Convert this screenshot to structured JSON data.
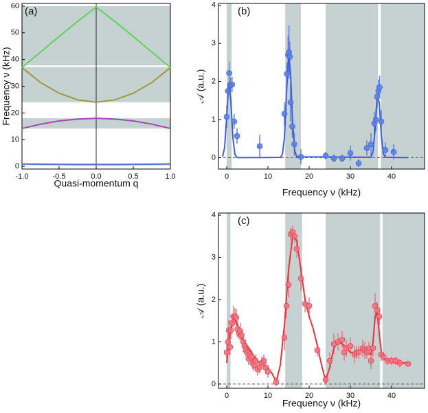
{
  "chart_data": [
    {
      "type": "line",
      "panel_label": "(a)",
      "x_label": "Quasi-momentum q",
      "y_label": "Frequency ν (kHz)",
      "x": [
        -1,
        -0.75,
        -0.5,
        -0.25,
        0,
        0.25,
        0.5,
        0.75,
        1
      ],
      "series": [
        {
          "color": "#5dd35a",
          "values": [
            37,
            42.8,
            48.6,
            54.3,
            59.6,
            54.3,
            48.6,
            42.8,
            37
          ]
        },
        {
          "color": "#9a9a3c",
          "values": [
            37,
            31.4,
            27.4,
            24.9,
            24,
            24.9,
            27.4,
            31.4,
            37
          ]
        },
        {
          "color": "#a547b3",
          "values": [
            14.2,
            15.8,
            17,
            17.7,
            18,
            17.7,
            17,
            15.8,
            14.2
          ]
        },
        {
          "color": "#5070e0",
          "values": [
            0.9,
            0.8,
            0.7,
            0.65,
            0.65,
            0.65,
            0.7,
            0.8,
            0.9
          ]
        }
      ],
      "shaded_y": [
        [
          0.4,
          1.2
        ],
        [
          14.2,
          18
        ],
        [
          24,
          37.2
        ],
        [
          37.8,
          60
        ]
      ],
      "vline": 0,
      "xlim": [
        -1,
        1
      ],
      "ylim": [
        -1,
        61
      ],
      "xticks": [
        {
          "value": -1,
          "label": "-1.0"
        },
        {
          "value": -0.5,
          "label": "-0.5"
        },
        {
          "value": 0,
          "label": "0.0"
        },
        {
          "value": 0.5,
          "label": "0.5"
        },
        {
          "value": 1,
          "label": "1.0"
        }
      ],
      "yticks": [
        0,
        10,
        20,
        30,
        40,
        50,
        60
      ]
    },
    {
      "type": "scatter",
      "panel_label": "(b)",
      "x_label": "Frequency ν (kHz)",
      "y_label": "𝒜 (a.u.)",
      "points": {
        "color": "#5b7fe6",
        "x": [
          0,
          0.3,
          0.6,
          0.9,
          1.3,
          1.8,
          2.5,
          8,
          14,
          14.6,
          14.9,
          15.1,
          15.3,
          15.5,
          15.9,
          16.4,
          18,
          24,
          26,
          28,
          30,
          32,
          34,
          35,
          35.8,
          36.2,
          36.5,
          36.8,
          37.1,
          37.5,
          38.5,
          40.5
        ],
        "y": [
          1.07,
          1.75,
          2.22,
          1.9,
          1.92,
          0.95,
          0.57,
          0.3,
          1.15,
          2.2,
          2.7,
          2.77,
          2.65,
          1.45,
          0.82,
          0.35,
          0.02,
          0.05,
          -0.02,
          -0.02,
          0.12,
          -0.15,
          0.25,
          0.35,
          0.9,
          1.0,
          1.6,
          1.75,
          1.85,
          0.95,
          0.2,
          0.15
        ],
        "err": [
          0.3,
          0.2,
          0.3,
          0.2,
          0.2,
          0.2,
          0.2,
          0.3,
          0.3,
          0.3,
          0.5,
          0.7,
          0.4,
          0.5,
          0.3,
          0.3,
          0.2,
          0.1,
          0.1,
          0.1,
          0.2,
          0.1,
          0.2,
          0.3,
          0.3,
          0.3,
          0.3,
          0.3,
          0.3,
          0.3,
          0.2,
          0.2
        ]
      },
      "fit": {
        "color": "#3a5fd9",
        "x": [
          -1,
          -0.5,
          0,
          0.5,
          1,
          1.5,
          2,
          2.5,
          3,
          13,
          13.5,
          14,
          14.5,
          15,
          15.5,
          16,
          16.5,
          17,
          35,
          35.5,
          36,
          36.5,
          37,
          37.5,
          38,
          38.5,
          44
        ],
        "y": [
          0.03,
          0.27,
          1.1,
          1.97,
          1.5,
          0.52,
          0.08,
          0.005,
          0,
          0.006,
          0.08,
          0.51,
          1.66,
          2.71,
          2.2,
          0.89,
          0.18,
          0.02,
          0.01,
          0.15,
          0.75,
          1.6,
          1.45,
          0.59,
          0.1,
          0.01,
          0
        ]
      },
      "shaded_x": [
        [
          0,
          1.2
        ],
        [
          14.2,
          18
        ],
        [
          24,
          36.7
        ],
        [
          37.4,
          48
        ]
      ],
      "hline": 0,
      "xlim": [
        -2,
        48
      ],
      "ylim": [
        -0.3,
        4.05
      ],
      "xticks": [
        0,
        10,
        20,
        30,
        40
      ],
      "yticks": [
        0,
        1,
        2,
        3,
        4
      ]
    },
    {
      "type": "scatter",
      "panel_label": "(c)",
      "x_label": "Frequency ν (kHz)",
      "y_label": "𝒜 (a.u.)",
      "points": {
        "color": "#f07383",
        "x": [
          0,
          0.3,
          0.5,
          0.8,
          1,
          1.3,
          1.6,
          2,
          2.3,
          2.6,
          3,
          3.3,
          3.6,
          4,
          4.3,
          4.6,
          5,
          5.3,
          5.6,
          6,
          6.3,
          6.6,
          7,
          7.5,
          8,
          8.5,
          9,
          9.5,
          10,
          12,
          14,
          14.5,
          15,
          15.5,
          16,
          16.5,
          17,
          18,
          19,
          20,
          22,
          24,
          25,
          26,
          27,
          28,
          28.5,
          29,
          30,
          31,
          31.5,
          32,
          33,
          33.5,
          34,
          34.5,
          35,
          35.5,
          36,
          36.5,
          37,
          37.5,
          38,
          39,
          40,
          41,
          42,
          44
        ],
        "y": [
          0.75,
          1.0,
          1.27,
          0.88,
          1.27,
          1.45,
          1.6,
          1.6,
          1.57,
          1.3,
          1.2,
          1.25,
          1.15,
          1.0,
          0.9,
          0.8,
          0.75,
          0.6,
          0.7,
          0.65,
          0.5,
          0.45,
          0.55,
          0.35,
          0.4,
          0.5,
          0.55,
          0.38,
          0.3,
          0.05,
          1.1,
          1.85,
          2.35,
          3.55,
          3.6,
          3.5,
          3.2,
          2.5,
          1.9,
          1.85,
          0.8,
          0.1,
          0.55,
          0.95,
          1.0,
          1.05,
          0.75,
          0.85,
          0.9,
          0.7,
          0.75,
          0.75,
          0.85,
          0.8,
          0.75,
          0.85,
          0.55,
          0.85,
          1.85,
          1.75,
          1.6,
          0.7,
          0.65,
          0.55,
          0.55,
          0.55,
          0.5,
          0.48
        ],
        "err": [
          0.2,
          0.2,
          0.25,
          0.2,
          0.2,
          0.2,
          0.25,
          0.2,
          0.2,
          0.2,
          0.15,
          0.2,
          0.15,
          0.15,
          0.15,
          0.15,
          0.15,
          0.15,
          0.15,
          0.15,
          0.15,
          0.15,
          0.15,
          0.15,
          0.15,
          0.15,
          0.15,
          0.15,
          0.15,
          0.1,
          0.3,
          0.3,
          0.3,
          0.15,
          0.15,
          0.15,
          0.2,
          0.3,
          0.2,
          0.2,
          0.15,
          0.1,
          0.2,
          0.25,
          0.2,
          0.2,
          0.2,
          0.2,
          0.2,
          0.2,
          0.15,
          0.15,
          0.2,
          0.2,
          0.15,
          0.15,
          0.2,
          0.2,
          0.3,
          0.2,
          0.2,
          0.15,
          0.1,
          0.1,
          0.1,
          0.1,
          0.1,
          0.05
        ]
      },
      "fit": {
        "color": "#e8333a",
        "x": [
          0,
          0.5,
          1,
          1.5,
          2,
          3,
          4,
          5,
          6,
          7,
          8,
          9,
          10,
          11,
          12,
          13,
          14,
          15,
          16,
          17,
          18,
          19,
          20,
          21,
          22,
          23,
          24,
          25,
          26,
          27,
          28,
          29,
          30,
          31,
          32,
          33,
          34,
          35,
          35.5,
          36,
          36.5,
          37,
          37.5,
          38,
          39,
          40,
          42,
          44
        ],
        "y": [
          0.5,
          1.0,
          1.3,
          1.5,
          1.55,
          1.3,
          1.05,
          0.9,
          0.75,
          0.6,
          0.5,
          0.45,
          0.38,
          0.25,
          0.05,
          0.45,
          1.4,
          2.7,
          3.5,
          3.4,
          2.7,
          2.0,
          1.6,
          1.3,
          0.9,
          0.45,
          0.08,
          0.4,
          0.85,
          1.0,
          0.95,
          0.85,
          0.75,
          0.75,
          0.8,
          0.8,
          0.75,
          0.7,
          1.0,
          1.6,
          1.7,
          1.2,
          0.75,
          0.6,
          0.55,
          0.52,
          0.5,
          0.5
        ]
      },
      "shaded_x": [
        [
          0,
          0.9
        ],
        [
          14.2,
          18.3
        ],
        [
          24,
          37.2
        ],
        [
          37.8,
          48
        ]
      ],
      "hline": 0,
      "xlim": [
        -2,
        48
      ],
      "ylim": [
        -0.1,
        4.05
      ],
      "xticks": [
        0,
        10,
        20,
        30,
        40
      ],
      "yticks": [
        0,
        1,
        2,
        3,
        4
      ]
    }
  ]
}
